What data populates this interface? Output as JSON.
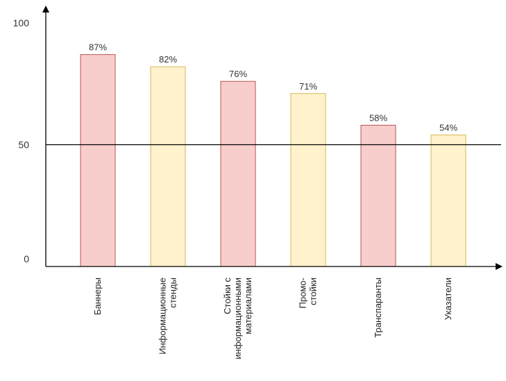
{
  "chart_data": {
    "type": "bar",
    "title": "",
    "xlabel": "",
    "ylabel": "",
    "ylim": [
      0,
      100
    ],
    "yticks": [
      "0",
      "50",
      "100"
    ],
    "grid": false,
    "reference_line": 50,
    "categories": [
      [
        "Баннеры"
      ],
      [
        "Информационные",
        "стенды"
      ],
      [
        "Стойки с",
        "информационными",
        "материалами"
      ],
      [
        "Промо-",
        "стойки"
      ],
      [
        "Транспаранты"
      ],
      [
        "Указатели"
      ]
    ],
    "values": [
      87,
      82,
      76,
      71,
      58,
      54
    ],
    "data_labels": [
      "87%",
      "82%",
      "76%",
      "71%",
      "58%",
      "54%"
    ],
    "bar_colors": [
      "#f8cecc",
      "#fff2cc",
      "#f8cecc",
      "#fff2cc",
      "#f8cecc",
      "#fff2cc"
    ],
    "bar_borders": [
      "#b85450",
      "#d6b656",
      "#b85450",
      "#d6b656",
      "#b85450",
      "#d6b656"
    ]
  }
}
